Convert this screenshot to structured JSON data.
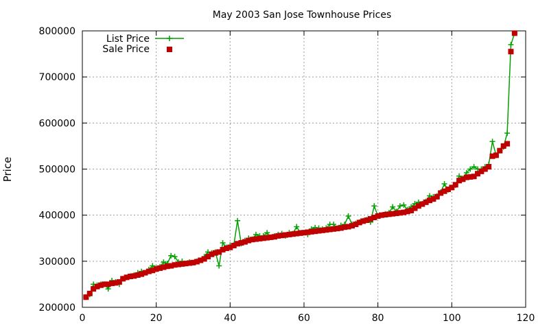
{
  "chart_data": {
    "type": "line",
    "title": "May 2003 San Jose Townhouse Prices",
    "xlabel": "",
    "ylabel": "Price",
    "xlim": [
      0,
      120
    ],
    "ylim": [
      200000,
      800000
    ],
    "xticks": [
      "0",
      "20",
      "40",
      "60",
      "80",
      "100",
      "120"
    ],
    "yticks": [
      "200000",
      "300000",
      "400000",
      "500000",
      "600000",
      "700000",
      "800000"
    ],
    "grid": true,
    "legend_position": "top-left",
    "series": [
      {
        "name": "List Price",
        "style": "line+cross",
        "color": "#00a000",
        "x": [
          1,
          2,
          3,
          4,
          5,
          6,
          7,
          8,
          9,
          10,
          11,
          12,
          13,
          14,
          15,
          16,
          17,
          18,
          19,
          20,
          21,
          22,
          23,
          24,
          25,
          26,
          27,
          28,
          29,
          30,
          31,
          32,
          33,
          34,
          35,
          36,
          37,
          38,
          39,
          40,
          41,
          42,
          43,
          44,
          45,
          46,
          47,
          48,
          49,
          50,
          51,
          52,
          53,
          54,
          55,
          56,
          57,
          58,
          59,
          60,
          61,
          62,
          63,
          64,
          65,
          66,
          67,
          68,
          69,
          70,
          71,
          72,
          73,
          74,
          75,
          76,
          77,
          78,
          79,
          80,
          81,
          82,
          83,
          84,
          85,
          86,
          87,
          88,
          89,
          90,
          91,
          92,
          93,
          94,
          95,
          96,
          97,
          98,
          99,
          100,
          101,
          102,
          103,
          104,
          105,
          106,
          107,
          108,
          109,
          110,
          111,
          112,
          113,
          114,
          115,
          116,
          117
        ],
        "values": [
          222000,
          228000,
          250000,
          248000,
          250000,
          250000,
          240000,
          258000,
          255000,
          250000,
          262000,
          265000,
          268000,
          270000,
          275000,
          278000,
          275000,
          282000,
          290000,
          285000,
          288000,
          298000,
          295000,
          312000,
          310000,
          298000,
          300000,
          295000,
          298000,
          297000,
          300000,
          302000,
          310000,
          320000,
          318000,
          320000,
          290000,
          340000,
          330000,
          335000,
          335000,
          388000,
          338000,
          345000,
          350000,
          348000,
          358000,
          355000,
          355000,
          362000,
          352000,
          355000,
          358000,
          360000,
          355000,
          362000,
          360000,
          375000,
          362000,
          362000,
          358000,
          370000,
          373000,
          372000,
          370000,
          372000,
          380000,
          380000,
          372000,
          378000,
          380000,
          398000,
          380000,
          382000,
          385000,
          388000,
          390000,
          385000,
          420000,
          398000,
          400000,
          403000,
          405000,
          418000,
          408000,
          420000,
          422000,
          412000,
          418000,
          425000,
          428000,
          425000,
          430000,
          442000,
          440000,
          442000,
          450000,
          468000,
          455000,
          460000,
          465000,
          485000,
          480000,
          492000,
          500000,
          505000,
          500000,
          500000,
          505000,
          510000,
          560000,
          530000,
          540000,
          548000,
          578000,
          770000,
          795000
        ]
      },
      {
        "name": "Sale Price",
        "style": "square-points",
        "color": "#c00000",
        "x": [
          1,
          2,
          3,
          4,
          5,
          6,
          7,
          8,
          9,
          10,
          11,
          12,
          13,
          14,
          15,
          16,
          17,
          18,
          19,
          20,
          21,
          22,
          23,
          24,
          25,
          26,
          27,
          28,
          29,
          30,
          31,
          32,
          33,
          34,
          35,
          36,
          37,
          38,
          39,
          40,
          41,
          42,
          43,
          44,
          45,
          46,
          47,
          48,
          49,
          50,
          51,
          52,
          53,
          54,
          55,
          56,
          57,
          58,
          59,
          60,
          61,
          62,
          63,
          64,
          65,
          66,
          67,
          68,
          69,
          70,
          71,
          72,
          73,
          74,
          75,
          76,
          77,
          78,
          79,
          80,
          81,
          82,
          83,
          84,
          85,
          86,
          87,
          88,
          89,
          90,
          91,
          92,
          93,
          94,
          95,
          96,
          97,
          98,
          99,
          100,
          101,
          102,
          103,
          104,
          105,
          106,
          107,
          108,
          109,
          110,
          111,
          112,
          113,
          114,
          115,
          116,
          117
        ],
        "values": [
          222000,
          230000,
          240000,
          245000,
          248000,
          250000,
          250000,
          252000,
          253000,
          255000,
          262000,
          265000,
          267000,
          268000,
          270000,
          272000,
          275000,
          278000,
          280000,
          283000,
          285000,
          287000,
          289000,
          290000,
          292000,
          293000,
          294000,
          295000,
          296000,
          297000,
          299000,
          302000,
          305000,
          310000,
          315000,
          318000,
          320000,
          325000,
          328000,
          330000,
          334000,
          338000,
          340000,
          342000,
          345000,
          347000,
          348000,
          349000,
          350000,
          351000,
          352000,
          353000,
          355000,
          356000,
          357000,
          358000,
          359000,
          360000,
          361000,
          362000,
          363000,
          364000,
          365000,
          366000,
          367000,
          368000,
          369000,
          370000,
          371000,
          372000,
          374000,
          375000,
          377000,
          380000,
          384000,
          387000,
          389000,
          392000,
          395000,
          398000,
          400000,
          401000,
          402000,
          403000,
          404000,
          405000,
          406000,
          408000,
          410000,
          415000,
          420000,
          424000,
          428000,
          432000,
          435000,
          440000,
          448000,
          452000,
          456000,
          460000,
          466000,
          475000,
          478000,
          482000,
          483000,
          484000,
          490000,
          495000,
          500000,
          505000,
          528000,
          530000,
          540000,
          550000,
          555000,
          755000,
          795000
        ]
      }
    ]
  }
}
